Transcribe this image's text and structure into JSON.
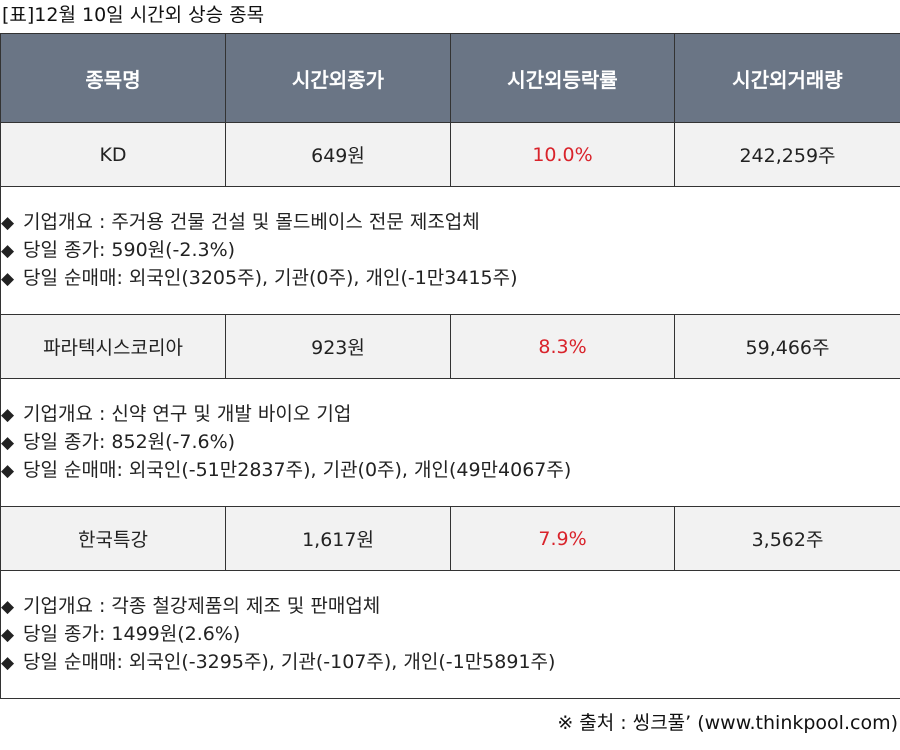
{
  "caption": "[표]12월 10일 시간외 상승 종목",
  "columns": [
    "종목명",
    "시간외종가",
    "시간외등락률",
    "시간외거래량"
  ],
  "bullet_glyph": "◆",
  "colors": {
    "header_bg": "#6a7585",
    "header_text": "#ffffff",
    "row_bg": "#f2f2f2",
    "rate_text": "#d9232b",
    "border": "#333333"
  },
  "stocks": [
    {
      "name": "KD",
      "close": "649원",
      "rate": "10.0%",
      "volume": "242,259주",
      "details": [
        "기업개요 : 주거용 건물 건설 및 몰드베이스 전문 제조업체",
        "당일 종가: 590원(-2.3%)",
        "당일 순매매: 외국인(3205주), 기관(0주), 개인(-1만3415주)"
      ]
    },
    {
      "name": "파라텍시스코리아",
      "close": "923원",
      "rate": "8.3%",
      "volume": "59,466주",
      "details": [
        "기업개요 : 신약 연구 및 개발 바이오 기업",
        "당일 종가: 852원(-7.6%)",
        "당일 순매매: 외국인(-51만2837주), 기관(0주), 개인(49만4067주)"
      ]
    },
    {
      "name": "한국특강",
      "close": "1,617원",
      "rate": "7.9%",
      "volume": "3,562주",
      "details": [
        "기업개요 : 각종 철강제품의 제조 및 판매업체",
        "당일 종가: 1499원(2.6%)",
        "당일 순매매: 외국인(-3295주), 기관(-107주), 개인(-1만5891주)"
      ]
    }
  ],
  "source": "※ 출처 : 씽크풀’ (www.thinkpool.com)"
}
